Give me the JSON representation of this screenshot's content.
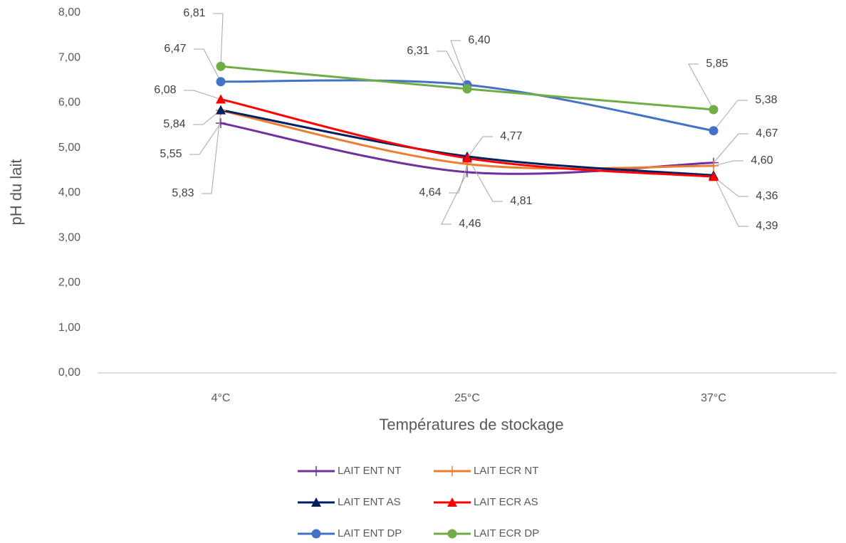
{
  "chart_data": {
    "type": "line",
    "y_label": "pH du lait",
    "x_label": "Températures de stockage",
    "categories": [
      "4°C",
      "25°C",
      "37°C"
    ],
    "ylim": [
      0,
      8
    ],
    "yticks": [
      {
        "value": 0,
        "label": "0,00"
      },
      {
        "value": 1,
        "label": "1,00"
      },
      {
        "value": 2,
        "label": "2,00"
      },
      {
        "value": 3,
        "label": "3,00"
      },
      {
        "value": 4,
        "label": "4,00"
      },
      {
        "value": 5,
        "label": "5,00"
      },
      {
        "value": 6,
        "label": "6,00"
      },
      {
        "value": 7,
        "label": "7,00"
      },
      {
        "value": 8,
        "label": "8,00"
      }
    ],
    "smooth": true,
    "series": [
      {
        "name": "LAIT ENT NT",
        "color": "#7030a0",
        "marker": "plus",
        "values": [
          5.55,
          4.46,
          4.67
        ],
        "value_labels": [
          "5,55",
          "4,46",
          "4,67"
        ]
      },
      {
        "name": "LAIT ECR NT",
        "color": "#ed7d31",
        "marker": "plus",
        "values": [
          5.83,
          4.64,
          4.6
        ],
        "value_labels": [
          "5,83",
          "4,64",
          "4,60"
        ]
      },
      {
        "name": "LAIT ENT AS",
        "color": "#002060",
        "marker": "triangle",
        "values": [
          5.84,
          4.81,
          4.39
        ],
        "value_labels": [
          "5,84",
          "4,81",
          "4,39"
        ]
      },
      {
        "name": "LAIT ECR AS",
        "color": "#ff0000",
        "marker": "triangle",
        "values": [
          6.08,
          4.77,
          4.36
        ],
        "value_labels": [
          "6,08",
          "4,77",
          "4,36"
        ]
      },
      {
        "name": "LAIT ENT DP",
        "color": "#4472c4",
        "marker": "circle",
        "values": [
          6.47,
          6.4,
          5.38
        ],
        "value_labels": [
          "6,47",
          "6,40",
          "5,38"
        ]
      },
      {
        "name": "LAIT ECR DP",
        "color": "#70ad47",
        "marker": "circle",
        "values": [
          6.81,
          6.31,
          5.85
        ],
        "value_labels": [
          "6,81",
          "6,31",
          "5,85"
        ]
      }
    ]
  }
}
